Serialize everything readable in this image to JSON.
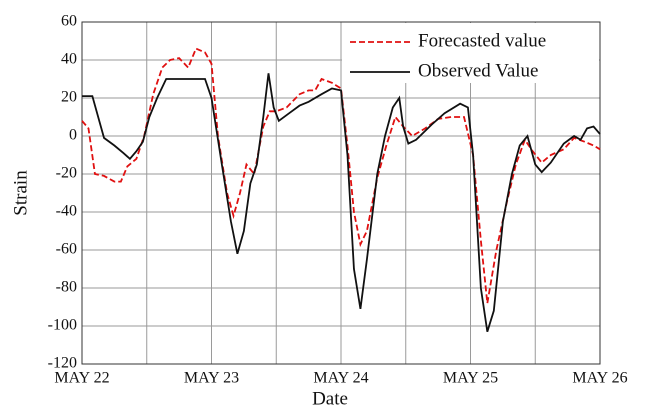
{
  "chart_data": {
    "type": "line",
    "x_label": "Date",
    "y_label": "Strain",
    "xlim": [
      0,
      4
    ],
    "xticks": [
      {
        "value": 0,
        "label": "MAY 22"
      },
      {
        "value": 1,
        "label": "MAY 23"
      },
      {
        "value": 2,
        "label": "MAY 24"
      },
      {
        "value": 3,
        "label": "MAY 25"
      },
      {
        "value": 4,
        "label": "MAY 26"
      }
    ],
    "xminorticks": [
      0.5,
      1.5,
      2.5,
      3.5
    ],
    "ylim": [
      -120,
      60
    ],
    "yticks": [
      -120,
      -100,
      -80,
      -60,
      -40,
      -20,
      0,
      20,
      40,
      60
    ],
    "grid": true,
    "legend": "upper right",
    "series": [
      {
        "name": "Forecasted value",
        "color": "#e01010",
        "dash": true,
        "x": [
          0,
          0.05,
          0.1,
          0.17,
          0.25,
          0.3,
          0.35,
          0.42,
          0.48,
          0.55,
          0.62,
          0.68,
          0.75,
          0.82,
          0.88,
          0.95,
          1.0,
          1.05,
          1.12,
          1.17,
          1.22,
          1.27,
          1.33,
          1.4,
          1.45,
          1.5,
          1.58,
          1.68,
          1.75,
          1.8,
          1.85,
          1.93,
          2.0,
          2.05,
          2.1,
          2.15,
          2.2,
          2.28,
          2.35,
          2.42,
          2.48,
          2.55,
          2.65,
          2.75,
          2.85,
          2.95,
          3.02,
          3.08,
          3.13,
          3.2,
          3.28,
          3.35,
          3.42,
          3.48,
          3.55,
          3.62,
          3.72,
          3.8,
          3.88,
          3.95,
          4.0
        ],
        "values": [
          8,
          4,
          -20,
          -21,
          -24,
          -24,
          -16,
          -12,
          0,
          22,
          36,
          40,
          41,
          36,
          46,
          44,
          38,
          0,
          -30,
          -42,
          -30,
          -15,
          -20,
          5,
          13,
          13,
          15,
          22,
          24,
          24,
          30,
          28,
          25,
          -5,
          -40,
          -57,
          -50,
          -22,
          -5,
          10,
          5,
          0,
          4,
          9,
          10,
          10,
          -10,
          -55,
          -88,
          -60,
          -35,
          -15,
          -2,
          -8,
          -14,
          -10,
          -7,
          -1,
          -3,
          -5,
          -7
        ]
      },
      {
        "name": "Observed Value",
        "color": "#111111",
        "dash": false,
        "x": [
          0,
          0.08,
          0.17,
          0.25,
          0.32,
          0.37,
          0.42,
          0.47,
          0.52,
          0.58,
          0.65,
          0.75,
          0.85,
          0.95,
          1.0,
          1.08,
          1.15,
          1.2,
          1.25,
          1.3,
          1.35,
          1.4,
          1.44,
          1.48,
          1.52,
          1.6,
          1.68,
          1.75,
          1.85,
          1.93,
          2.0,
          2.05,
          2.1,
          2.15,
          2.2,
          2.28,
          2.34,
          2.4,
          2.45,
          2.48,
          2.52,
          2.58,
          2.7,
          2.8,
          2.92,
          2.98,
          3.02,
          3.08,
          3.13,
          3.18,
          3.25,
          3.32,
          3.38,
          3.44,
          3.5,
          3.55,
          3.62,
          3.72,
          3.8,
          3.85,
          3.9,
          3.95,
          4.0
        ],
        "values": [
          21,
          21,
          -1,
          -5,
          -9,
          -12,
          -8,
          -3,
          10,
          20,
          30,
          30,
          30,
          30,
          20,
          -15,
          -45,
          -62,
          -50,
          -25,
          -15,
          10,
          33,
          15,
          8,
          12,
          16,
          18,
          22,
          25,
          24,
          -10,
          -70,
          -91,
          -65,
          -20,
          0,
          15,
          20,
          5,
          -4,
          -2,
          6,
          12,
          17,
          15,
          -10,
          -80,
          -103,
          -92,
          -45,
          -20,
          -5,
          0,
          -15,
          -19,
          -14,
          -4,
          0,
          -2,
          4,
          5,
          1
        ]
      }
    ]
  }
}
